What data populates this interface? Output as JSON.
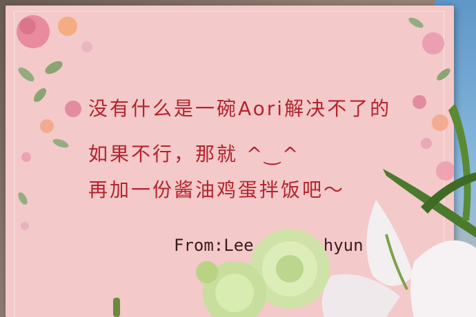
{
  "card": {
    "lines": [
      "没有什么是一碗Aori解决不了的",
      "如果不行，那就 ^‿^",
      "再加一份酱油鸡蛋拌饭吧～"
    ],
    "signature": "From:Lee Seung-hyun"
  },
  "colors": {
    "card": "#f3c9c9",
    "text": "#b5232c",
    "signature": "#3a1c1c"
  }
}
